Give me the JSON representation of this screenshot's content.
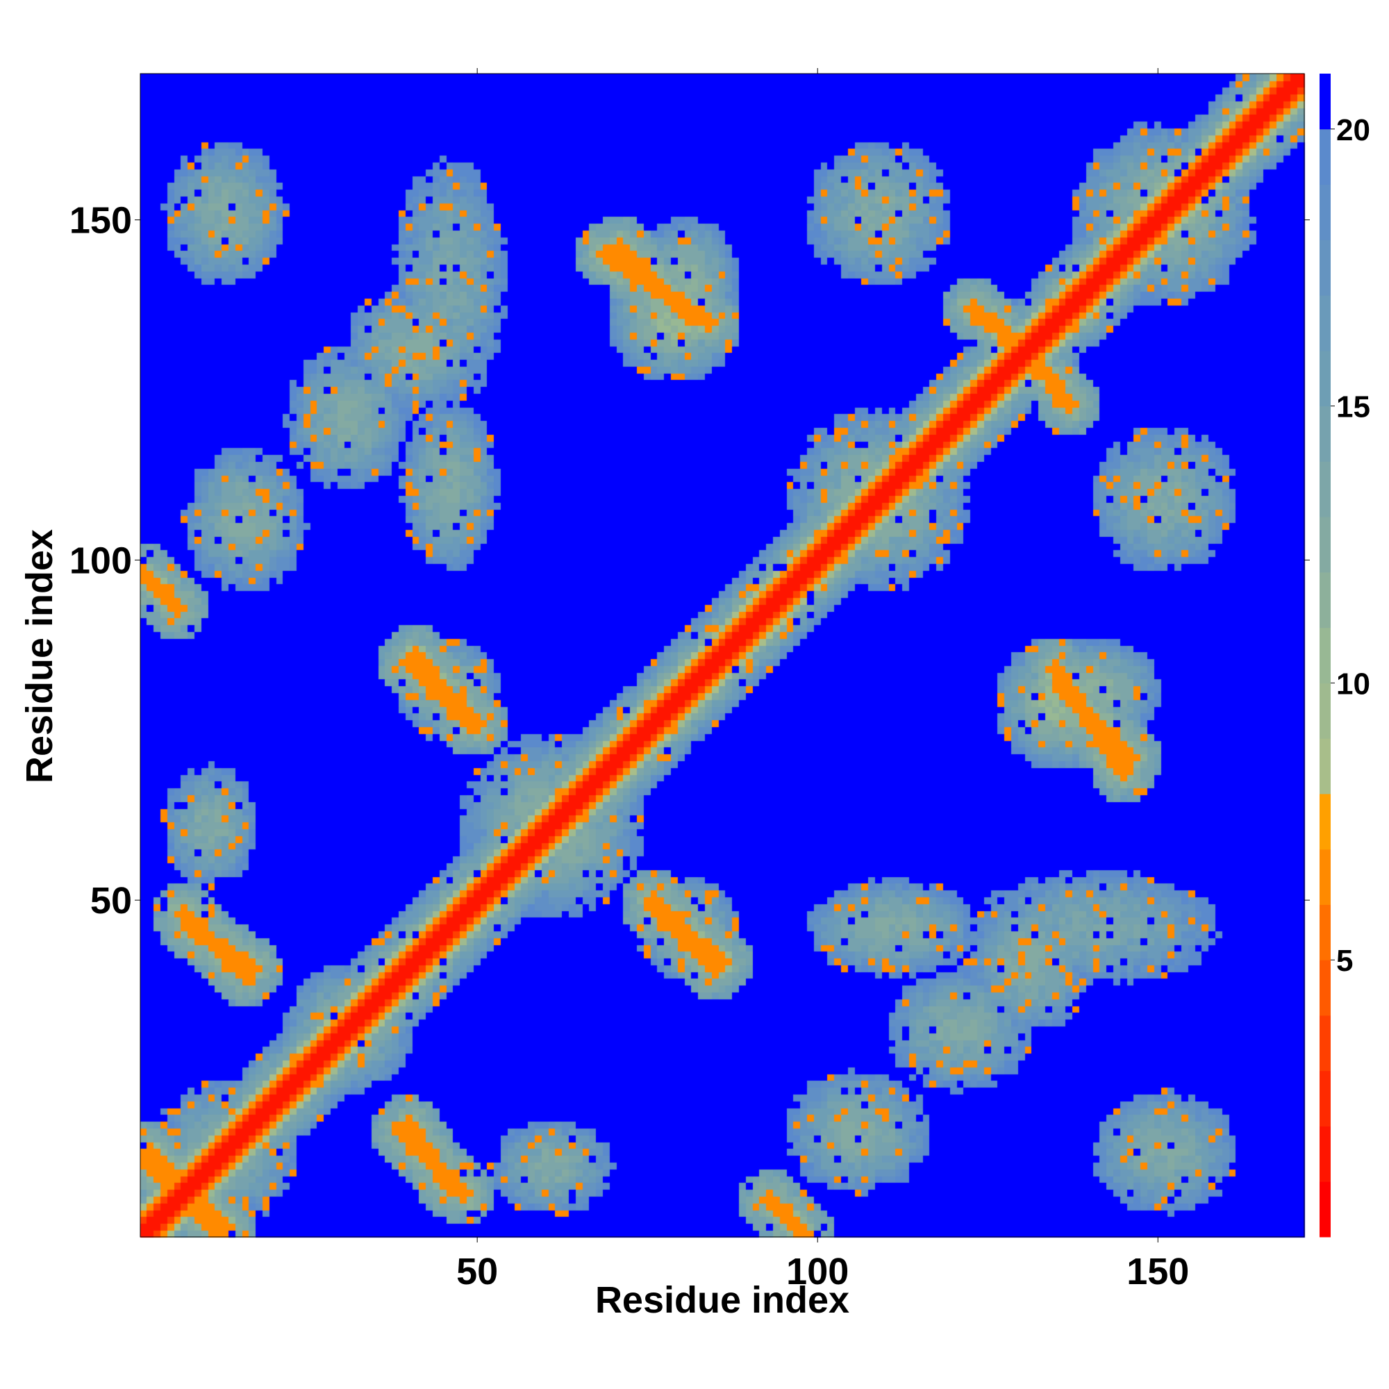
{
  "chart_data": {
    "type": "heatmap",
    "title": "",
    "xlabel": "Residue index",
    "ylabel": "Residue index",
    "x_range": [
      1,
      171
    ],
    "y_range": [
      1,
      171
    ],
    "x_ticks": [
      50,
      100,
      150
    ],
    "y_ticks": [
      50,
      100,
      150
    ],
    "n_residues": 171,
    "colorbar": {
      "range": [
        0,
        21
      ],
      "ticks": [
        5,
        10,
        15,
        20
      ],
      "levels": [
        {
          "from": 0,
          "to": 1,
          "color": "#ff0000"
        },
        {
          "from": 1,
          "to": 2,
          "color": "#ff1500"
        },
        {
          "from": 2,
          "to": 3,
          "color": "#ff2a00"
        },
        {
          "from": 3,
          "to": 4,
          "color": "#ff4000"
        },
        {
          "from": 4,
          "to": 5,
          "color": "#ff5a00"
        },
        {
          "from": 5,
          "to": 6,
          "color": "#ff7000"
        },
        {
          "from": 6,
          "to": 7,
          "color": "#ff8a00"
        },
        {
          "from": 7,
          "to": 8,
          "color": "#ffa000"
        },
        {
          "from": 8,
          "to": 9,
          "color": "#a8be8a"
        },
        {
          "from": 9,
          "to": 10,
          "color": "#9fba8f"
        },
        {
          "from": 10,
          "to": 11,
          "color": "#98b894"
        },
        {
          "from": 11,
          "to": 12,
          "color": "#8db09b"
        },
        {
          "from": 12,
          "to": 13,
          "color": "#84aaa2"
        },
        {
          "from": 13,
          "to": 14,
          "color": "#7da6a8"
        },
        {
          "from": 14,
          "to": 15,
          "color": "#76a2ae"
        },
        {
          "from": 15,
          "to": 16,
          "color": "#6e9eb4"
        },
        {
          "from": 16,
          "to": 17,
          "color": "#6a9aba"
        },
        {
          "from": 17,
          "to": 18,
          "color": "#6594c0"
        },
        {
          "from": 18,
          "to": 19,
          "color": "#608fc6"
        },
        {
          "from": 19,
          "to": 20,
          "color": "#5b8acc"
        },
        {
          "from": 20,
          "to": 21,
          "color": "#0000ff"
        }
      ]
    },
    "contact_features": [
      {
        "kind": "band",
        "diagonal": "main",
        "center_offset": 0,
        "width": 4.0,
        "value": 1.5
      },
      {
        "kind": "band",
        "diagonal": "main",
        "center_offset": 0,
        "width": 9.0,
        "value": 11
      },
      {
        "kind": "blob",
        "x": 12,
        "y": 12,
        "sx": 12,
        "sy": 12,
        "value": 13
      },
      {
        "kind": "blob",
        "x": 60,
        "y": 60,
        "sx": 14,
        "sy": 14,
        "value": 12
      },
      {
        "kind": "blob",
        "x": 108,
        "y": 108,
        "sx": 14,
        "sy": 14,
        "value": 12
      },
      {
        "kind": "blob",
        "x": 150,
        "y": 150,
        "sx": 14,
        "sy": 14,
        "value": 12
      },
      {
        "kind": "blob",
        "x": 12,
        "y": 150,
        "sx": 10,
        "sy": 12,
        "value": 13
      },
      {
        "kind": "blob",
        "x": 150,
        "y": 12,
        "sx": 12,
        "sy": 10,
        "value": 13
      },
      {
        "kind": "blob",
        "x": 45,
        "y": 140,
        "sx": 10,
        "sy": 22,
        "value": 14
      },
      {
        "kind": "blob",
        "x": 140,
        "y": 45,
        "sx": 22,
        "sy": 10,
        "value": 14
      },
      {
        "kind": "blob",
        "x": 78,
        "y": 135,
        "sx": 10,
        "sy": 10,
        "value": 11
      },
      {
        "kind": "blob",
        "x": 135,
        "y": 78,
        "sx": 10,
        "sy": 10,
        "value": 11
      },
      {
        "kind": "blob",
        "x": 108,
        "y": 150,
        "sx": 12,
        "sy": 12,
        "value": 13
      },
      {
        "kind": "blob",
        "x": 150,
        "y": 108,
        "sx": 12,
        "sy": 12,
        "value": 13
      },
      {
        "kind": "blob",
        "x": 15,
        "y": 105,
        "sx": 10,
        "sy": 12,
        "value": 13
      },
      {
        "kind": "blob",
        "x": 105,
        "y": 15,
        "sx": 12,
        "sy": 10,
        "value": 13
      },
      {
        "kind": "blob",
        "x": 45,
        "y": 80,
        "sx": 8,
        "sy": 8,
        "value": 12
      },
      {
        "kind": "blob",
        "x": 80,
        "y": 45,
        "sx": 8,
        "sy": 8,
        "value": 12
      },
      {
        "kind": "blob",
        "x": 140,
        "y": 80,
        "sx": 10,
        "sy": 8,
        "value": 12
      },
      {
        "kind": "blob",
        "x": 80,
        "y": 140,
        "sx": 8,
        "sy": 10,
        "value": 12
      },
      {
        "kind": "blob",
        "x": 110,
        "y": 45,
        "sx": 14,
        "sy": 8,
        "value": 13
      },
      {
        "kind": "blob",
        "x": 45,
        "y": 110,
        "sx": 8,
        "sy": 14,
        "value": 13
      },
      {
        "kind": "blob",
        "x": 10,
        "y": 60,
        "sx": 8,
        "sy": 10,
        "value": 13
      },
      {
        "kind": "blob",
        "x": 60,
        "y": 10,
        "sx": 10,
        "sy": 8,
        "value": 13
      },
      {
        "kind": "blob",
        "x": 40,
        "y": 130,
        "sx": 12,
        "sy": 10,
        "value": 13
      },
      {
        "kind": "blob",
        "x": 130,
        "y": 40,
        "sx": 10,
        "sy": 12,
        "value": 13
      },
      {
        "kind": "blob",
        "x": 30,
        "y": 30,
        "sx": 10,
        "sy": 10,
        "value": 12
      },
      {
        "kind": "blob",
        "x": 120,
        "y": 30,
        "sx": 12,
        "sy": 10,
        "value": 13
      },
      {
        "kind": "blob",
        "x": 30,
        "y": 120,
        "sx": 10,
        "sy": 12,
        "value": 13
      },
      {
        "kind": "strand",
        "x1": 68,
        "y1": 144,
        "x2": 83,
        "y2": 134,
        "value": 6
      },
      {
        "kind": "strand",
        "x1": 144,
        "y1": 68,
        "x2": 134,
        "y2": 83,
        "value": 6
      },
      {
        "kind": "strand",
        "x1": 39,
        "y1": 84,
        "x2": 49,
        "y2": 75,
        "value": 6
      },
      {
        "kind": "strand",
        "x1": 84,
        "y1": 39,
        "x2": 75,
        "y2": 49,
        "value": 6
      },
      {
        "kind": "strand",
        "x1": 135,
        "y1": 80,
        "x2": 145,
        "y2": 70,
        "value": 6
      },
      {
        "kind": "strand",
        "x1": 80,
        "y1": 135,
        "x2": 70,
        "y2": 145,
        "value": 6
      },
      {
        "kind": "strand",
        "x1": 75,
        "y1": 48,
        "x2": 85,
        "y2": 40,
        "value": 6
      },
      {
        "kind": "strand",
        "x1": 48,
        "y1": 75,
        "x2": 40,
        "y2": 85,
        "value": 6
      },
      {
        "kind": "strand",
        "x1": 38,
        "y1": 15,
        "x2": 47,
        "y2": 6,
        "value": 6
      },
      {
        "kind": "strand",
        "x1": 15,
        "y1": 38,
        "x2": 6,
        "y2": 47,
        "value": 6
      },
      {
        "kind": "strand",
        "x1": 7,
        "y1": 45,
        "x2": 16,
        "y2": 39,
        "value": 6
      },
      {
        "kind": "strand",
        "x1": 45,
        "y1": 7,
        "x2": 39,
        "y2": 16,
        "value": 6
      },
      {
        "kind": "strand",
        "x1": 0,
        "y1": 97,
        "x2": 5,
        "y2": 92,
        "value": 6
      },
      {
        "kind": "strand",
        "x1": 97,
        "y1": 0,
        "x2": 92,
        "y2": 5,
        "value": 6
      },
      {
        "kind": "strand",
        "x1": 122,
        "y1": 136,
        "x2": 127,
        "y2": 132,
        "value": 6
      },
      {
        "kind": "strand",
        "x1": 136,
        "y1": 122,
        "x2": 132,
        "y2": 127,
        "value": 6
      },
      {
        "kind": "strand",
        "x1": 1,
        "y1": 12,
        "x2": 10,
        "y2": 1,
        "value": 6
      },
      {
        "kind": "strand",
        "x1": 12,
        "y1": 1,
        "x2": 1,
        "y2": 10,
        "value": 6
      }
    ]
  }
}
